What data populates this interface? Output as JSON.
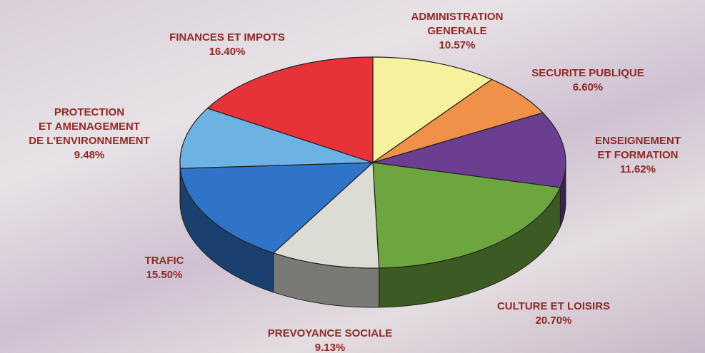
{
  "chart_data": {
    "type": "pie",
    "categories": [
      "ADMINISTRATION\nGENERALE",
      "SECURITE PUBLIQUE",
      "ENSEIGNEMENT\nET FORMATION",
      "CULTURE ET LOISIRS",
      "PREVOYANCE SOCIALE",
      "TRAFIC",
      "PROTECTION\nET AMENAGEMENT\nDE L'ENVIRONNEMENT",
      "FINANCES ET IMPOTS"
    ],
    "values": [
      10.57,
      6.6,
      11.62,
      20.7,
      9.13,
      15.5,
      9.48,
      16.4
    ],
    "value_labels": [
      "10.57%",
      "6.60%",
      "11.62%",
      "20.70%",
      "9.13%",
      "15.50%",
      "9.48%",
      "16.40%"
    ],
    "colors": [
      "#f6f19c",
      "#f0914a",
      "#6b3e92",
      "#6da63f",
      "#dcdcd4",
      "#2f74c9",
      "#6cb2e2",
      "#e8323a"
    ]
  }
}
